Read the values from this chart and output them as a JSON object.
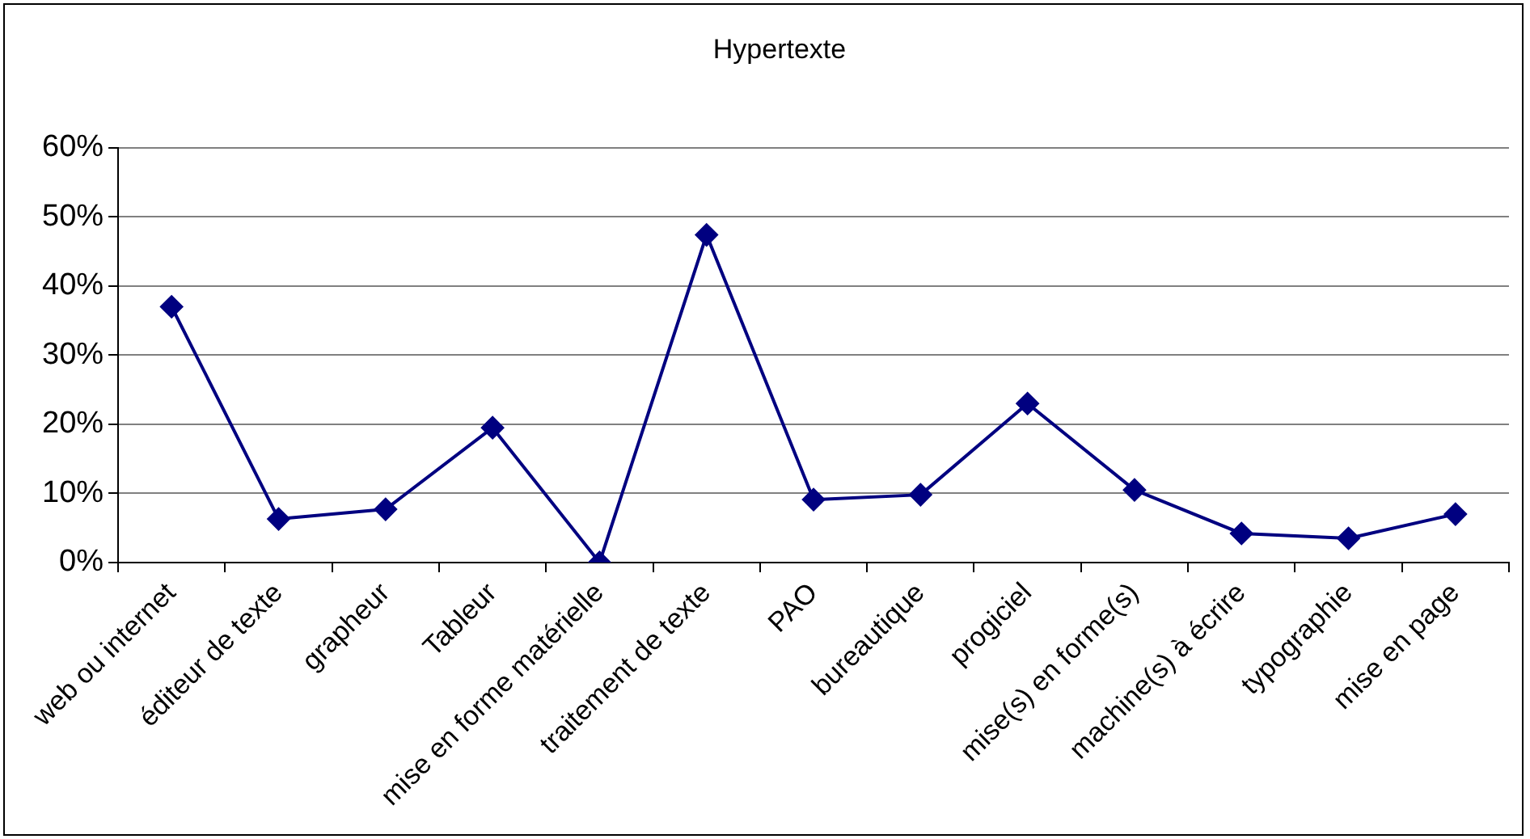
{
  "chart_data": {
    "type": "line",
    "title": "Hypertexte",
    "categories": [
      "web ou internet",
      "éditeur de texte",
      "grapheur",
      "Tableur",
      "mise en forme matérielle",
      "traitement de texte",
      "PAO",
      "bureautique",
      "progiciel",
      "mise(s) en forme(s)",
      "machine(s) à écrire",
      "typographie",
      "mise en page"
    ],
    "series": [
      {
        "color": "#000080",
        "values": [
          37,
          6.3,
          7.7,
          19.5,
          0,
          47.4,
          9.1,
          9.8,
          23,
          10.5,
          4.2,
          3.5,
          7
        ]
      }
    ],
    "ylim": [
      0,
      60
    ],
    "yticks": [
      {
        "value": 0,
        "label": "0%"
      },
      {
        "value": 10,
        "label": "10%"
      },
      {
        "value": 20,
        "label": "20%"
      },
      {
        "value": 30,
        "label": "30%"
      },
      {
        "value": 40,
        "label": "40%"
      },
      {
        "value": 50,
        "label": "50%"
      },
      {
        "value": 60,
        "label": "60%"
      }
    ],
    "grid": "y",
    "legend": false,
    "marker": "diamond",
    "line_style": "solid"
  }
}
